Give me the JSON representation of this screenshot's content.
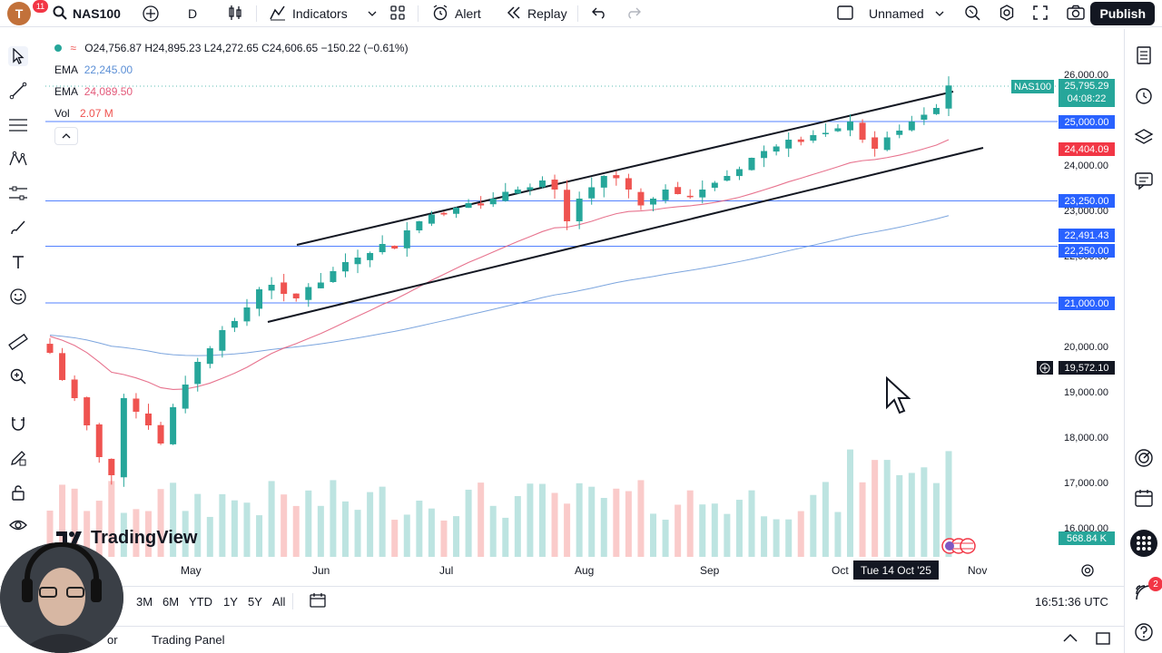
{
  "topbar": {
    "avatar_letter": "T",
    "notification_count": "11",
    "symbol": "NAS100",
    "interval": "D",
    "indicators_label": "Indicators",
    "alert_label": "Alert",
    "replay_label": "Replay",
    "layout_name": "Unnamed",
    "publish_label": "Publish"
  },
  "legend": {
    "ohlc": "O24,756.87 H24,895.23 L24,272.65 C24,606.65 −150.22 (−0.61%)",
    "ema1_label": "EMA",
    "ema1_value": "22,245.00",
    "ema2_label": "EMA",
    "ema2_value": "24,089.50",
    "vol_label": "Vol",
    "vol_value": "2.07 M"
  },
  "price_axis": {
    "symbol_tag": "NAS100",
    "last_price": "25,795.29",
    "countdown": "04:08:22",
    "ticks": [
      "26,000.00",
      "24,000.00",
      "23,000.00",
      "22,000.00",
      "20,000.00",
      "19,000.00",
      "18,000.00",
      "17,000.00",
      "16,000.00"
    ],
    "level_25000": "25,000.00",
    "ema_tag": "24,404.09",
    "level_23250": "23,250.00",
    "ema_long_tag": "22,491.43",
    "level_22250": "22,250.00",
    "level_21000": "21,000.00",
    "cursor_price": "19,572.10",
    "volume_tag": "568.84 K"
  },
  "time_axis": {
    "labels": [
      "May",
      "Jun",
      "Jul",
      "Aug",
      "Sep",
      "Oct",
      "Nov"
    ],
    "cursor_date": "Tue 14 Oct '25"
  },
  "bottombar": {
    "ranges": [
      "3M",
      "6M",
      "YTD",
      "1Y",
      "5Y",
      "All"
    ],
    "clock": "16:51:36 UTC",
    "panel_left": "or",
    "panel_trading": "Trading Panel"
  },
  "watermark": "TradingView",
  "right_badge": "2",
  "colors": {
    "up": "#26a69a",
    "down": "#ef5350",
    "ema_fast": "#e35a7a",
    "ema_slow": "#5b8fd6",
    "level_line": "#2962ff",
    "channel": "#131722"
  },
  "chart_data": {
    "type": "candlestick",
    "symbol": "NAS100",
    "interval": "D",
    "horizontal_levels": [
      25000,
      23250,
      22250,
      21000
    ],
    "ema_fast_last": 24404.09,
    "ema_slow_last": 22491.43,
    "last_price": 25795.29,
    "ylim": [
      15800,
      26400
    ],
    "x_labels": [
      "May",
      "Jun",
      "Jul",
      "Aug",
      "Sep",
      "Oct",
      "Nov"
    ],
    "closes": [
      19900,
      19300,
      18900,
      18300,
      17600,
      17200,
      18900,
      18600,
      18300,
      17900,
      18700,
      19200,
      19700,
      20000,
      20400,
      20600,
      20900,
      21300,
      21400,
      21200,
      21100,
      21350,
      21450,
      21700,
      21900,
      22000,
      22100,
      22300,
      22200,
      22600,
      22800,
      22950,
      22950,
      23100,
      23200,
      23150,
      23300,
      23450,
      23500,
      23550,
      23700,
      23500,
      22800,
      23300,
      23550,
      23800,
      23750,
      23500,
      23150,
      23300,
      23500,
      23400,
      23350,
      23500,
      23650,
      23800,
      23950,
      24200,
      24350,
      24450,
      24600,
      24550,
      24700,
      24750,
      24850,
      25000,
      24600,
      24400,
      24650,
      24800,
      25000,
      25150,
      25300,
      25795
    ]
  }
}
